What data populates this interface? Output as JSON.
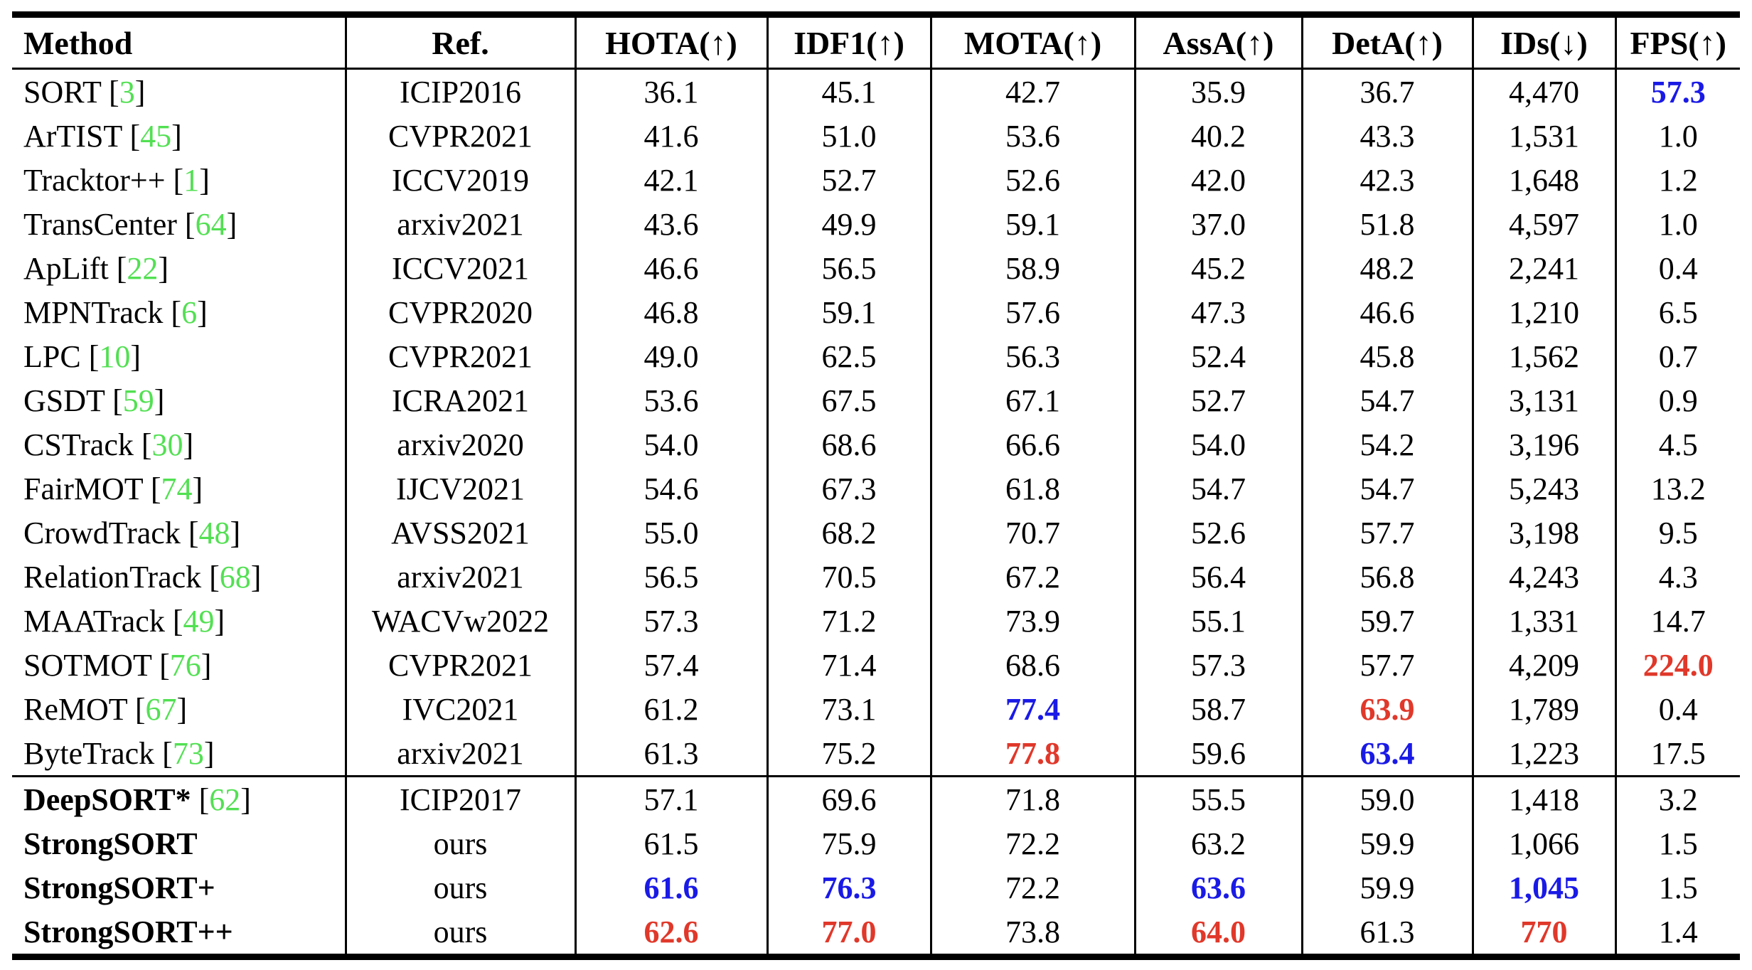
{
  "colors": {
    "citation": "#52e052",
    "best": "#e0382a",
    "second": "#1a1ae6"
  },
  "table": {
    "columns": [
      {
        "key": "method",
        "label": "Method"
      },
      {
        "key": "ref",
        "label": "Ref."
      },
      {
        "key": "hota",
        "label": "HOTA(↑)"
      },
      {
        "key": "idf1",
        "label": "IDF1(↑)"
      },
      {
        "key": "mota",
        "label": "MOTA(↑)"
      },
      {
        "key": "assa",
        "label": "AssA(↑)"
      },
      {
        "key": "deta",
        "label": "DetA(↑)"
      },
      {
        "key": "ids",
        "label": "IDs(↓)"
      },
      {
        "key": "fps",
        "label": "FPS(↑)"
      }
    ],
    "groups": [
      {
        "rows": [
          {
            "method": "SORT",
            "citation": "3",
            "bold": false,
            "ref": "ICIP2016",
            "values": [
              "36.1",
              "45.1",
              "42.7",
              "35.9",
              "36.7",
              "4,470",
              {
                "v": "57.3",
                "mark": "second"
              }
            ]
          },
          {
            "method": "ArTIST",
            "citation": "45",
            "bold": false,
            "ref": "CVPR2021",
            "values": [
              "41.6",
              "51.0",
              "53.6",
              "40.2",
              "43.3",
              "1,531",
              "1.0"
            ]
          },
          {
            "method": "Tracktor++",
            "citation": "1",
            "bold": false,
            "ref": "ICCV2019",
            "values": [
              "42.1",
              "52.7",
              "52.6",
              "42.0",
              "42.3",
              "1,648",
              "1.2"
            ]
          },
          {
            "method": "TransCenter",
            "citation": "64",
            "bold": false,
            "ref": "arxiv2021",
            "values": [
              "43.6",
              "49.9",
              "59.1",
              "37.0",
              "51.8",
              "4,597",
              "1.0"
            ]
          },
          {
            "method": "ApLift",
            "citation": "22",
            "bold": false,
            "ref": "ICCV2021",
            "values": [
              "46.6",
              "56.5",
              "58.9",
              "45.2",
              "48.2",
              "2,241",
              "0.4"
            ]
          },
          {
            "method": "MPNTrack",
            "citation": "6",
            "bold": false,
            "ref": "CVPR2020",
            "values": [
              "46.8",
              "59.1",
              "57.6",
              "47.3",
              "46.6",
              "1,210",
              "6.5"
            ]
          },
          {
            "method": "LPC",
            "citation": "10",
            "bold": false,
            "ref": "CVPR2021",
            "values": [
              "49.0",
              "62.5",
              "56.3",
              "52.4",
              "45.8",
              "1,562",
              "0.7"
            ]
          },
          {
            "method": "GSDT",
            "citation": "59",
            "bold": false,
            "ref": "ICRA2021",
            "values": [
              "53.6",
              "67.5",
              "67.1",
              "52.7",
              "54.7",
              "3,131",
              "0.9"
            ]
          },
          {
            "method": "CSTrack",
            "citation": "30",
            "bold": false,
            "ref": "arxiv2020",
            "values": [
              "54.0",
              "68.6",
              "66.6",
              "54.0",
              "54.2",
              "3,196",
              "4.5"
            ]
          },
          {
            "method": "FairMOT",
            "citation": "74",
            "bold": false,
            "ref": "IJCV2021",
            "values": [
              "54.6",
              "67.3",
              "61.8",
              "54.7",
              "54.7",
              "5,243",
              "13.2"
            ]
          },
          {
            "method": "CrowdTrack",
            "citation": "48",
            "bold": false,
            "ref": "AVSS2021",
            "values": [
              "55.0",
              "68.2",
              "70.7",
              "52.6",
              "57.7",
              "3,198",
              "9.5"
            ]
          },
          {
            "method": "RelationTrack",
            "citation": "68",
            "bold": false,
            "ref": "arxiv2021",
            "values": [
              "56.5",
              "70.5",
              "67.2",
              "56.4",
              "56.8",
              "4,243",
              "4.3"
            ]
          },
          {
            "method": "MAATrack",
            "citation": "49",
            "bold": false,
            "ref": "WACVw2022",
            "values": [
              "57.3",
              "71.2",
              "73.9",
              "55.1",
              "59.7",
              "1,331",
              "14.7"
            ]
          },
          {
            "method": "SOTMOT",
            "citation": "76",
            "bold": false,
            "ref": "CVPR2021",
            "values": [
              "57.4",
              "71.4",
              "68.6",
              "57.3",
              "57.7",
              "4,209",
              {
                "v": "224.0",
                "mark": "best"
              }
            ]
          },
          {
            "method": "ReMOT",
            "citation": "67",
            "bold": false,
            "ref": "IVC2021",
            "values": [
              "61.2",
              "73.1",
              {
                "v": "77.4",
                "mark": "second"
              },
              "58.7",
              {
                "v": "63.9",
                "mark": "best"
              },
              "1,789",
              "0.4"
            ]
          },
          {
            "method": "ByteTrack",
            "citation": "73",
            "bold": false,
            "ref": "arxiv2021",
            "values": [
              "61.3",
              "75.2",
              {
                "v": "77.8",
                "mark": "best"
              },
              "59.6",
              {
                "v": "63.4",
                "mark": "second"
              },
              "1,223",
              "17.5"
            ]
          }
        ]
      },
      {
        "rows": [
          {
            "method": "DeepSORT*",
            "citation": "62",
            "bold": true,
            "ref": "ICIP2017",
            "values": [
              "57.1",
              "69.6",
              "71.8",
              "55.5",
              "59.0",
              "1,418",
              "3.2"
            ]
          },
          {
            "method": "StrongSORT",
            "citation": "",
            "bold": true,
            "ref": "ours",
            "values": [
              "61.5",
              "75.9",
              "72.2",
              "63.2",
              "59.9",
              "1,066",
              "1.5"
            ]
          },
          {
            "method": "StrongSORT+",
            "citation": "",
            "bold": true,
            "ref": "ours",
            "values": [
              {
                "v": "61.6",
                "mark": "second"
              },
              {
                "v": "76.3",
                "mark": "second"
              },
              "72.2",
              {
                "v": "63.6",
                "mark": "second"
              },
              "59.9",
              {
                "v": "1,045",
                "mark": "second"
              },
              "1.5"
            ]
          },
          {
            "method": "StrongSORT++",
            "citation": "",
            "bold": true,
            "ref": "ours",
            "values": [
              {
                "v": "62.6",
                "mark": "best"
              },
              {
                "v": "77.0",
                "mark": "best"
              },
              "73.8",
              {
                "v": "64.0",
                "mark": "best"
              },
              "61.3",
              {
                "v": "770",
                "mark": "best"
              },
              "1.4"
            ]
          }
        ]
      }
    ]
  }
}
